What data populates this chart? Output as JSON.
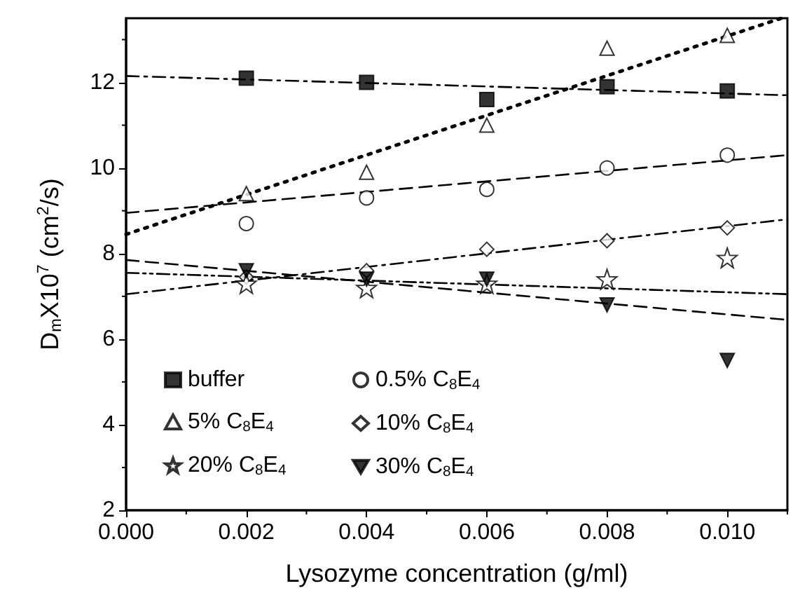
{
  "chart_data": {
    "type": "scatter",
    "xlabel": "Lysozyme concentration (g/ml)",
    "ylabel": "D$_{m}$X10$^{7}$ (cm$^{2}$/s)",
    "x": [
      0.002,
      0.004,
      0.006,
      0.008,
      0.01
    ],
    "xlim": [
      0,
      0.011
    ],
    "xticks": [
      {
        "value": 0,
        "label": "0.000"
      },
      {
        "value": 0.002,
        "label": "0.002"
      },
      {
        "value": 0.004,
        "label": "0.004"
      },
      {
        "value": 0.006,
        "label": "0.006"
      },
      {
        "value": 0.008,
        "label": "0.008"
      },
      {
        "value": 0.01,
        "label": "0.010"
      }
    ],
    "ylim": [
      2,
      13.5
    ],
    "yticks": [
      2,
      4,
      6,
      8,
      10,
      12
    ],
    "grid": false,
    "legend": "bottom left",
    "series": [
      {
        "name": "buffer",
        "color": "#000000",
        "marker": "square",
        "values": [
          12.1,
          12.0,
          11.6,
          11.9,
          11.8
        ]
      },
      {
        "name": "0.5% C$_{8}$E$_{4}$",
        "color": "#000000",
        "marker": "circle",
        "values": [
          8.7,
          9.3,
          9.5,
          10.0,
          10.3
        ]
      },
      {
        "name": "5% C$_{8}$E$_{4}$",
        "color": "#000000",
        "marker": "triangle",
        "values": [
          9.4,
          9.9,
          11.0,
          12.8,
          13.1
        ]
      },
      {
        "name": "10% C$_{8}$E$_{4}$",
        "color": "#000000",
        "marker": "diamond",
        "values": [
          7.45,
          7.6,
          8.1,
          8.3,
          8.6
        ]
      },
      {
        "name": "20% C$_{8}$E$_{4}$",
        "color": "#000000",
        "marker": "star",
        "values": [
          7.3,
          7.2,
          7.3,
          7.4,
          7.9
        ]
      },
      {
        "name": "30% C$_{8}$E$_{4}$",
        "color": "#000000",
        "marker": "triangle-down",
        "values": [
          7.6,
          7.4,
          7.4,
          6.8,
          5.5
        ]
      },
      {
        "type": "line",
        "color": "#000000",
        "line_style": "dashdot",
        "x": [
          0,
          0.011
        ],
        "values": [
          12.15,
          11.7
        ]
      },
      {
        "type": "line",
        "color": "#000000",
        "line_style": "dashed",
        "x": [
          0,
          0.011
        ],
        "values": [
          8.95,
          10.3
        ]
      },
      {
        "type": "line",
        "color": "#000000",
        "line_style": "dotted",
        "x": [
          0,
          0.0109
        ],
        "values": [
          8.45,
          13.5
        ]
      },
      {
        "type": "line",
        "color": "#000000",
        "line_style": "dashdot",
        "x": [
          0,
          0.011
        ],
        "values": [
          7.05,
          8.8
        ]
      },
      {
        "type": "line",
        "color": "#000000",
        "line_style": "dashdotdot",
        "x": [
          0,
          0.011
        ],
        "values": [
          7.55,
          7.05
        ]
      },
      {
        "type": "line",
        "color": "#000000",
        "line_style": "dashed",
        "x": [
          0,
          0.011
        ],
        "values": [
          7.85,
          6.45
        ]
      }
    ]
  }
}
